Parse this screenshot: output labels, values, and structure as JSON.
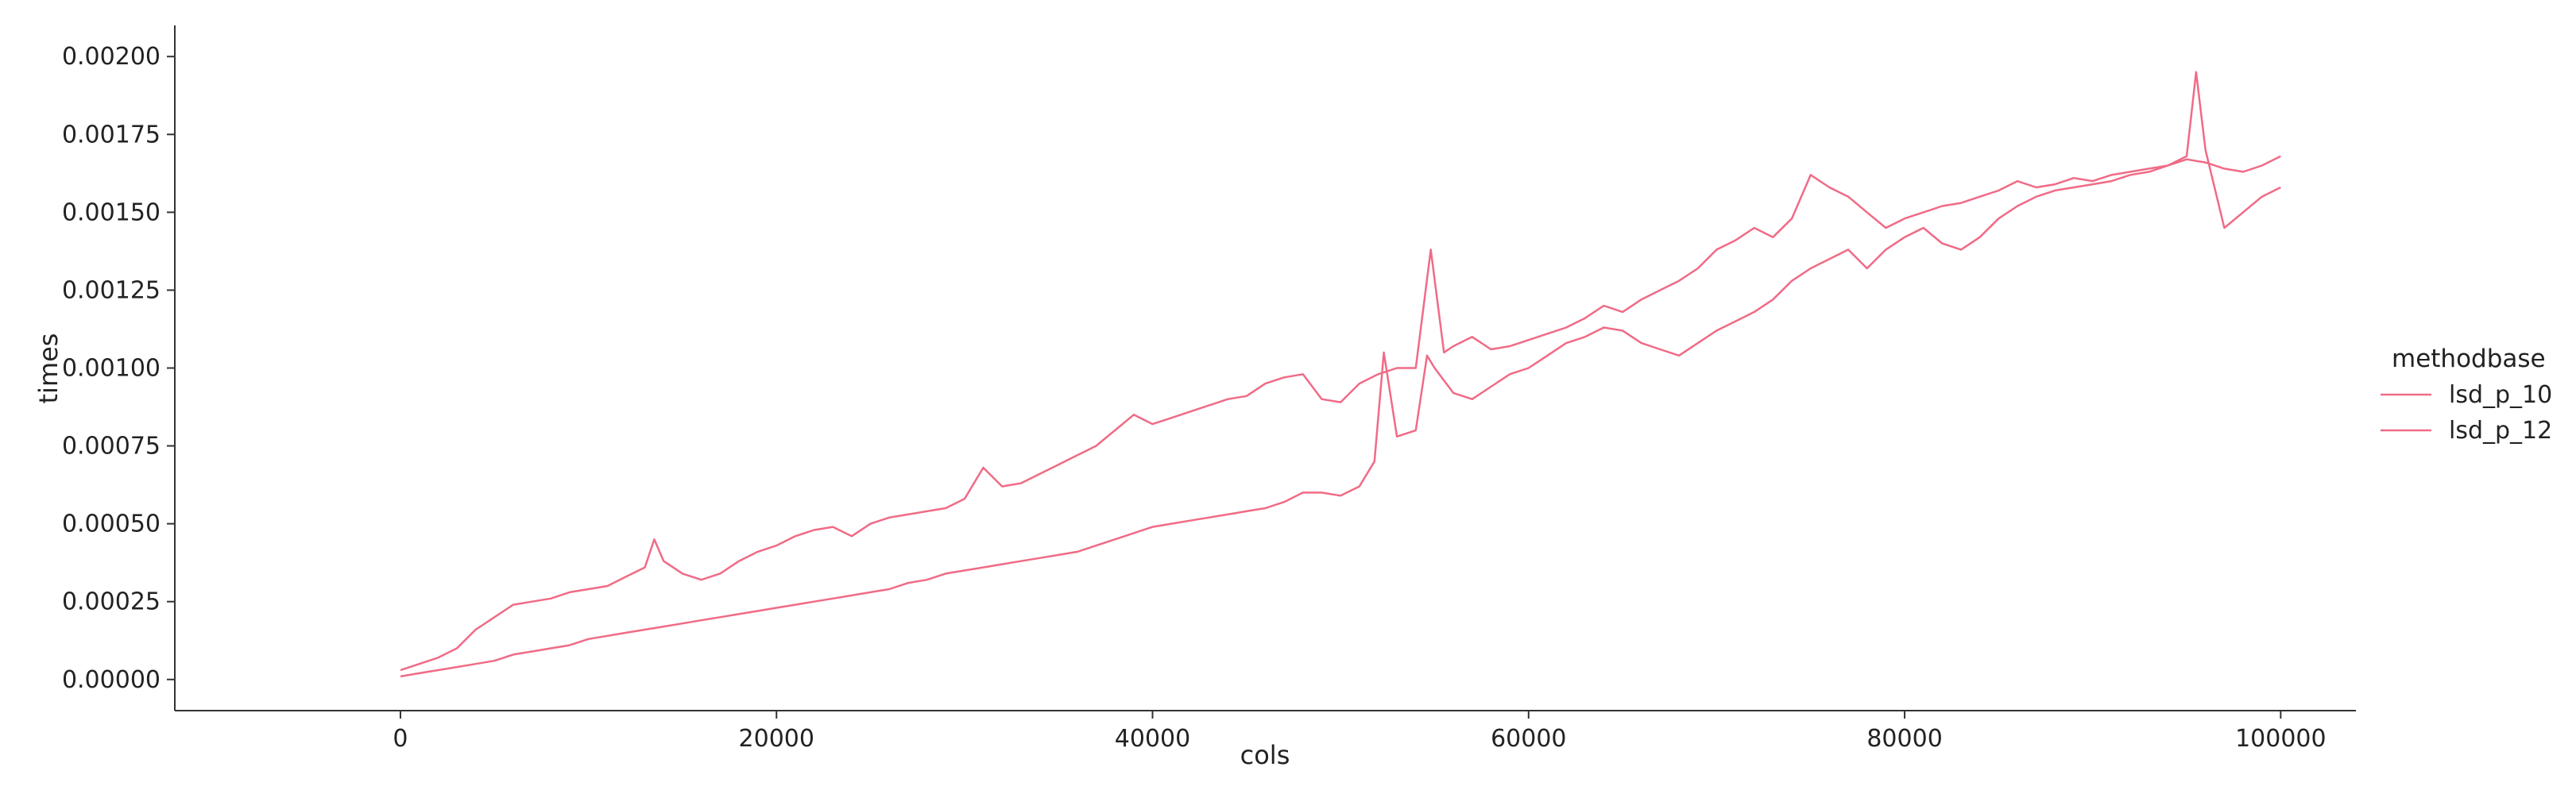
{
  "chart_data": {
    "type": "line",
    "title": "",
    "xlabel": "cols",
    "ylabel": "times",
    "xlim": [
      -12000,
      104000
    ],
    "ylim": [
      -0.0001,
      0.0021
    ],
    "xticks": [
      0,
      20000,
      40000,
      60000,
      80000,
      100000
    ],
    "xtick_labels": [
      "0",
      "20000",
      "40000",
      "60000",
      "80000",
      "100000"
    ],
    "yticks": [
      0,
      0.00025,
      0.0005,
      0.00075,
      0.001,
      0.00125,
      0.0015,
      0.00175,
      0.002
    ],
    "ytick_labels": [
      "0.00000",
      "0.00025",
      "0.00050",
      "0.00075",
      "0.00100",
      "0.00125",
      "0.00150",
      "0.00175",
      "0.00200"
    ],
    "grid": false,
    "legend": {
      "title": "methodbase",
      "placement": "right",
      "entries": [
        "lsd_p_10",
        "lsd_p_12"
      ]
    },
    "line_color": "#f06b86",
    "series": [
      {
        "name": "lsd_p_10",
        "x": [
          0,
          1000,
          2000,
          3000,
          4000,
          5000,
          6000,
          7000,
          8000,
          9000,
          10000,
          11000,
          12000,
          13000,
          13500,
          14000,
          15000,
          16000,
          17000,
          18000,
          19000,
          20000,
          21000,
          22000,
          23000,
          24000,
          25000,
          26000,
          27000,
          28000,
          29000,
          30000,
          31000,
          32000,
          33000,
          34000,
          35000,
          36000,
          37000,
          38000,
          39000,
          40000,
          41000,
          42000,
          43000,
          44000,
          45000,
          46000,
          47000,
          48000,
          49000,
          50000,
          51000,
          52000,
          53000,
          54000,
          54800,
          55500,
          56000,
          57000,
          58000,
          59000,
          60000,
          61000,
          62000,
          63000,
          64000,
          65000,
          66000,
          67000,
          68000,
          69000,
          70000,
          71000,
          72000,
          73000,
          74000,
          75000,
          76000,
          77000,
          78000,
          79000,
          80000,
          81000,
          82000,
          83000,
          84000,
          85000,
          86000,
          87000,
          88000,
          89000,
          90000,
          91000,
          92000,
          93000,
          94000,
          95000,
          96000,
          97000,
          98000,
          99000,
          100000
        ],
        "values": [
          3e-05,
          5e-05,
          7e-05,
          0.0001,
          0.00016,
          0.0002,
          0.00024,
          0.00025,
          0.00026,
          0.00028,
          0.00029,
          0.0003,
          0.00033,
          0.00036,
          0.00045,
          0.00038,
          0.00034,
          0.00032,
          0.00034,
          0.00038,
          0.00041,
          0.00043,
          0.00046,
          0.00048,
          0.00049,
          0.00046,
          0.0005,
          0.00052,
          0.00053,
          0.00054,
          0.00055,
          0.00058,
          0.00068,
          0.00062,
          0.00063,
          0.00066,
          0.00069,
          0.00072,
          0.00075,
          0.0008,
          0.00085,
          0.00082,
          0.00084,
          0.00086,
          0.00088,
          0.0009,
          0.00091,
          0.00095,
          0.00097,
          0.00098,
          0.0009,
          0.00089,
          0.00095,
          0.00098,
          0.001,
          0.001,
          0.00138,
          0.00105,
          0.00107,
          0.0011,
          0.00106,
          0.00107,
          0.00109,
          0.00111,
          0.00113,
          0.00116,
          0.0012,
          0.00118,
          0.00122,
          0.00125,
          0.00128,
          0.00132,
          0.00138,
          0.00141,
          0.00145,
          0.00142,
          0.00148,
          0.00162,
          0.00158,
          0.00155,
          0.0015,
          0.00145,
          0.00148,
          0.0015,
          0.00152,
          0.00153,
          0.00155,
          0.00157,
          0.0016,
          0.00158,
          0.00159,
          0.00161,
          0.0016,
          0.00162,
          0.00163,
          0.00164,
          0.00165,
          0.00167,
          0.00166,
          0.00164,
          0.00163,
          0.00165,
          0.00168
        ]
      },
      {
        "name": "lsd_p_12",
        "x": [
          0,
          1000,
          2000,
          3000,
          4000,
          5000,
          6000,
          7000,
          8000,
          9000,
          10000,
          11000,
          12000,
          13000,
          14000,
          15000,
          16000,
          17000,
          18000,
          19000,
          20000,
          21000,
          22000,
          23000,
          24000,
          25000,
          26000,
          27000,
          28000,
          29000,
          30000,
          31000,
          32000,
          33000,
          34000,
          35000,
          36000,
          37000,
          38000,
          39000,
          40000,
          41000,
          42000,
          43000,
          44000,
          45000,
          46000,
          47000,
          48000,
          49000,
          50000,
          51000,
          51800,
          52300,
          53000,
          54000,
          54600,
          55000,
          56000,
          57000,
          58000,
          59000,
          60000,
          61000,
          62000,
          63000,
          64000,
          65000,
          66000,
          67000,
          68000,
          69000,
          70000,
          71000,
          72000,
          73000,
          74000,
          75000,
          76000,
          77000,
          78000,
          79000,
          80000,
          81000,
          82000,
          83000,
          84000,
          85000,
          86000,
          87000,
          88000,
          89000,
          90000,
          91000,
          92000,
          93000,
          94000,
          95000,
          95500,
          96000,
          97000,
          98000,
          99000,
          100000
        ],
        "values": [
          1e-05,
          2e-05,
          3e-05,
          4e-05,
          5e-05,
          6e-05,
          8e-05,
          9e-05,
          0.0001,
          0.00011,
          0.00013,
          0.00014,
          0.00015,
          0.00016,
          0.00017,
          0.00018,
          0.00019,
          0.0002,
          0.00021,
          0.00022,
          0.00023,
          0.00024,
          0.00025,
          0.00026,
          0.00027,
          0.00028,
          0.00029,
          0.00031,
          0.00032,
          0.00034,
          0.00035,
          0.00036,
          0.00037,
          0.00038,
          0.00039,
          0.0004,
          0.00041,
          0.00043,
          0.00045,
          0.00047,
          0.00049,
          0.0005,
          0.00051,
          0.00052,
          0.00053,
          0.00054,
          0.00055,
          0.00057,
          0.0006,
          0.0006,
          0.00059,
          0.00062,
          0.0007,
          0.00105,
          0.00078,
          0.0008,
          0.00104,
          0.001,
          0.00092,
          0.0009,
          0.00094,
          0.00098,
          0.001,
          0.00104,
          0.00108,
          0.0011,
          0.00113,
          0.00112,
          0.00108,
          0.00106,
          0.00104,
          0.00108,
          0.00112,
          0.00115,
          0.00118,
          0.00122,
          0.00128,
          0.00132,
          0.00135,
          0.00138,
          0.00132,
          0.00138,
          0.00142,
          0.00145,
          0.0014,
          0.00138,
          0.00142,
          0.00148,
          0.00152,
          0.00155,
          0.00157,
          0.00158,
          0.00159,
          0.0016,
          0.00162,
          0.00163,
          0.00165,
          0.00168,
          0.00195,
          0.0017,
          0.00145,
          0.0015,
          0.00155,
          0.00158
        ]
      }
    ]
  }
}
